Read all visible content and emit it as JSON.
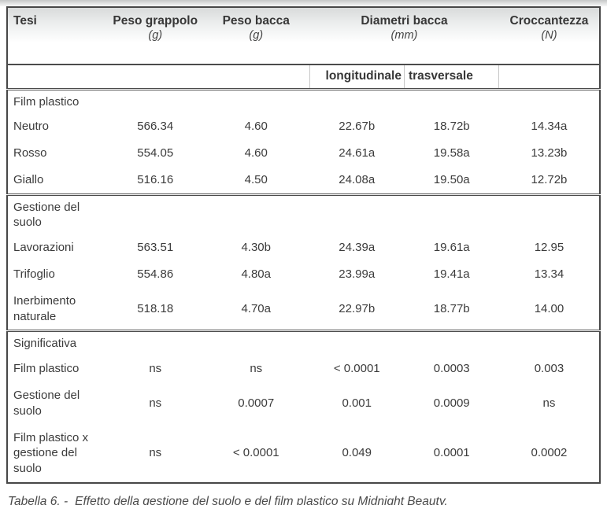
{
  "table": {
    "columns": [
      {
        "label": "Tesi",
        "unit": ""
      },
      {
        "label": "Peso grappolo",
        "unit": "(g)"
      },
      {
        "label": "Peso bacca",
        "unit": "(g)"
      },
      {
        "label": "Diametri bacca",
        "unit": "(mm)"
      },
      {
        "label": "Croccantezza",
        "unit": "(N)"
      }
    ],
    "diametri_subcolumns": {
      "left": "longitudinale",
      "right": "trasversale"
    },
    "sections": [
      {
        "group_label": "Film plastico",
        "rows": [
          {
            "label": "Neutro",
            "values": [
              "566.34",
              "4.60",
              "22.67b",
              "18.72b",
              "14.34a"
            ]
          },
          {
            "label": "Rosso",
            "values": [
              "554.05",
              "4.60",
              "24.61a",
              "19.58a",
              "13.23b"
            ]
          },
          {
            "label": "Giallo",
            "values": [
              "516.16",
              "4.50",
              "24.08a",
              "19.50a",
              "12.72b"
            ]
          }
        ]
      },
      {
        "group_label": "Gestione del\nsuolo",
        "rows": [
          {
            "label": "Lavorazioni",
            "values": [
              "563.51",
              "4.30b",
              "24.39a",
              "19.61a",
              "12.95"
            ]
          },
          {
            "label": "Trifoglio",
            "values": [
              "554.86",
              "4.80a",
              "23.99a",
              "19.41a",
              "13.34"
            ]
          },
          {
            "label": "Inerbimento\nnaturale",
            "values": [
              "518.18",
              "4.70a",
              "22.97b",
              "18.77b",
              "14.00"
            ]
          }
        ]
      },
      {
        "group_label": "Significativa",
        "rows": [
          {
            "label": "Film plastico",
            "values": [
              "ns",
              "ns",
              "< 0.0001",
              "0.0003",
              "0.003"
            ]
          },
          {
            "label": "Gestione del\nsuolo",
            "values": [
              "ns",
              "0.0007",
              "0.001",
              "0.0009",
              "ns"
            ]
          },
          {
            "label": "Film plastico x\ngestione del\nsuolo",
            "values": [
              "ns",
              "< 0.0001",
              "0.049",
              "0.0001",
              "0.0002"
            ]
          }
        ]
      }
    ],
    "caption": {
      "prefix": "Tabella 6. -",
      "text": "Effetto della gestione del suolo e del film plastico su Midnight Beauty."
    }
  }
}
